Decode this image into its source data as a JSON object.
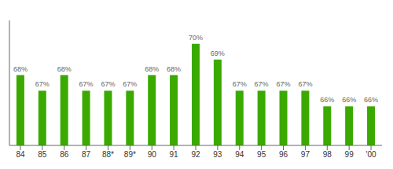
{
  "chart_data": {
    "type": "bar",
    "categories": [
      "84",
      "85",
      "86",
      "87",
      "88*",
      "89*",
      "90",
      "91",
      "92",
      "93",
      "94",
      "95",
      "96",
      "97",
      "98",
      "99",
      "'00"
    ],
    "values": [
      68,
      67,
      68,
      67,
      67,
      67,
      68,
      68,
      70,
      69,
      67,
      67,
      67,
      67,
      66,
      66,
      66
    ],
    "value_labels": [
      "68%",
      "67%",
      "68%",
      "67%",
      "67%",
      "67%",
      "68%",
      "68%",
      "70%",
      "69%",
      "67%",
      "67%",
      "67%",
      "67%",
      "66%",
      "66%",
      "66%"
    ],
    "color": "#3aaa00",
    "ylim": [
      63.5,
      71.5
    ],
    "grid": false,
    "data_labels": true,
    "tick_labels": "x"
  }
}
